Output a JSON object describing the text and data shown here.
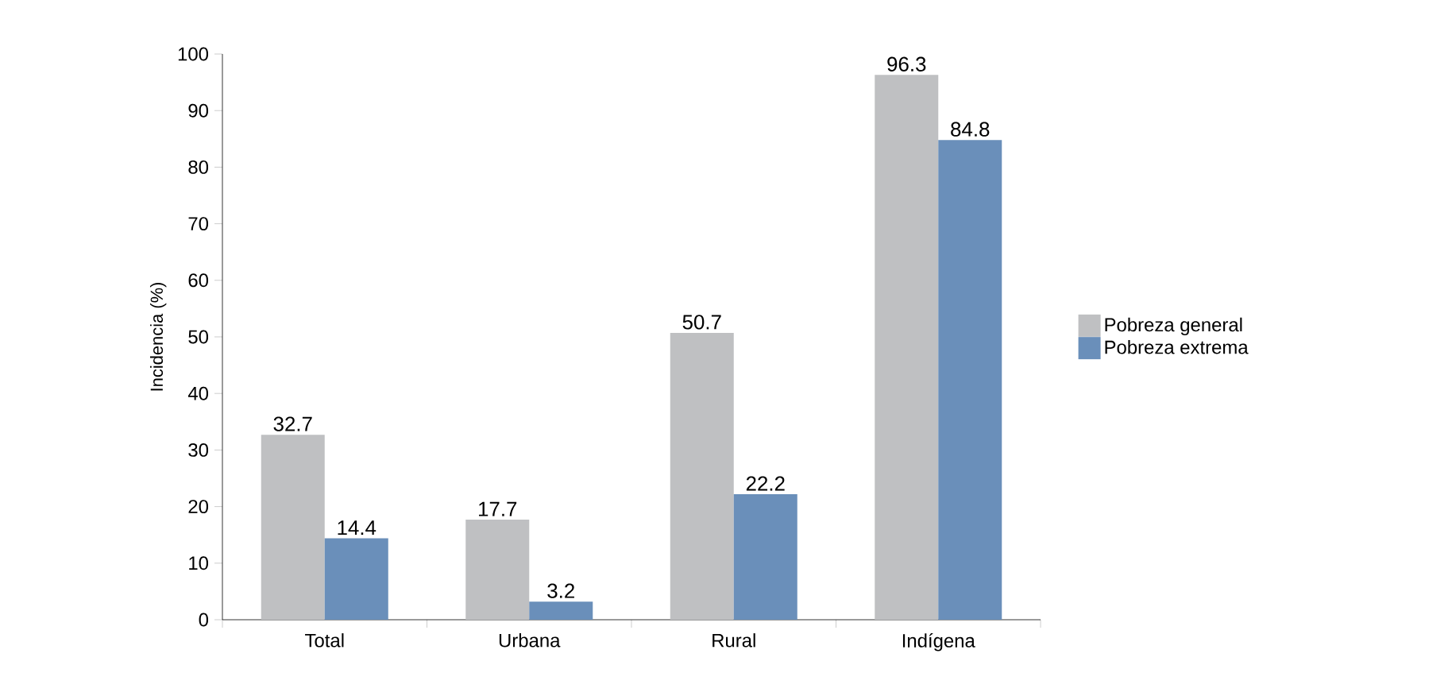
{
  "chart_data": {
    "type": "bar",
    "ylabel": "Incidencia (%)",
    "categories": [
      "Total",
      "Urbana",
      "Rural",
      "Indígena"
    ],
    "series": [
      {
        "name": "Pobreza general",
        "color": "#bfc0c2",
        "values": [
          32.7,
          17.7,
          50.7,
          96.3
        ]
      },
      {
        "name": "Pobreza extrema",
        "color": "#6a8fba",
        "values": [
          14.4,
          3.2,
          22.2,
          84.8
        ]
      }
    ],
    "ylim": [
      0,
      100
    ],
    "yticks": [
      0,
      10,
      20,
      30,
      40,
      50,
      60,
      70,
      80,
      90,
      100
    ],
    "data_labels": true,
    "legend": "right",
    "grid": false
  }
}
